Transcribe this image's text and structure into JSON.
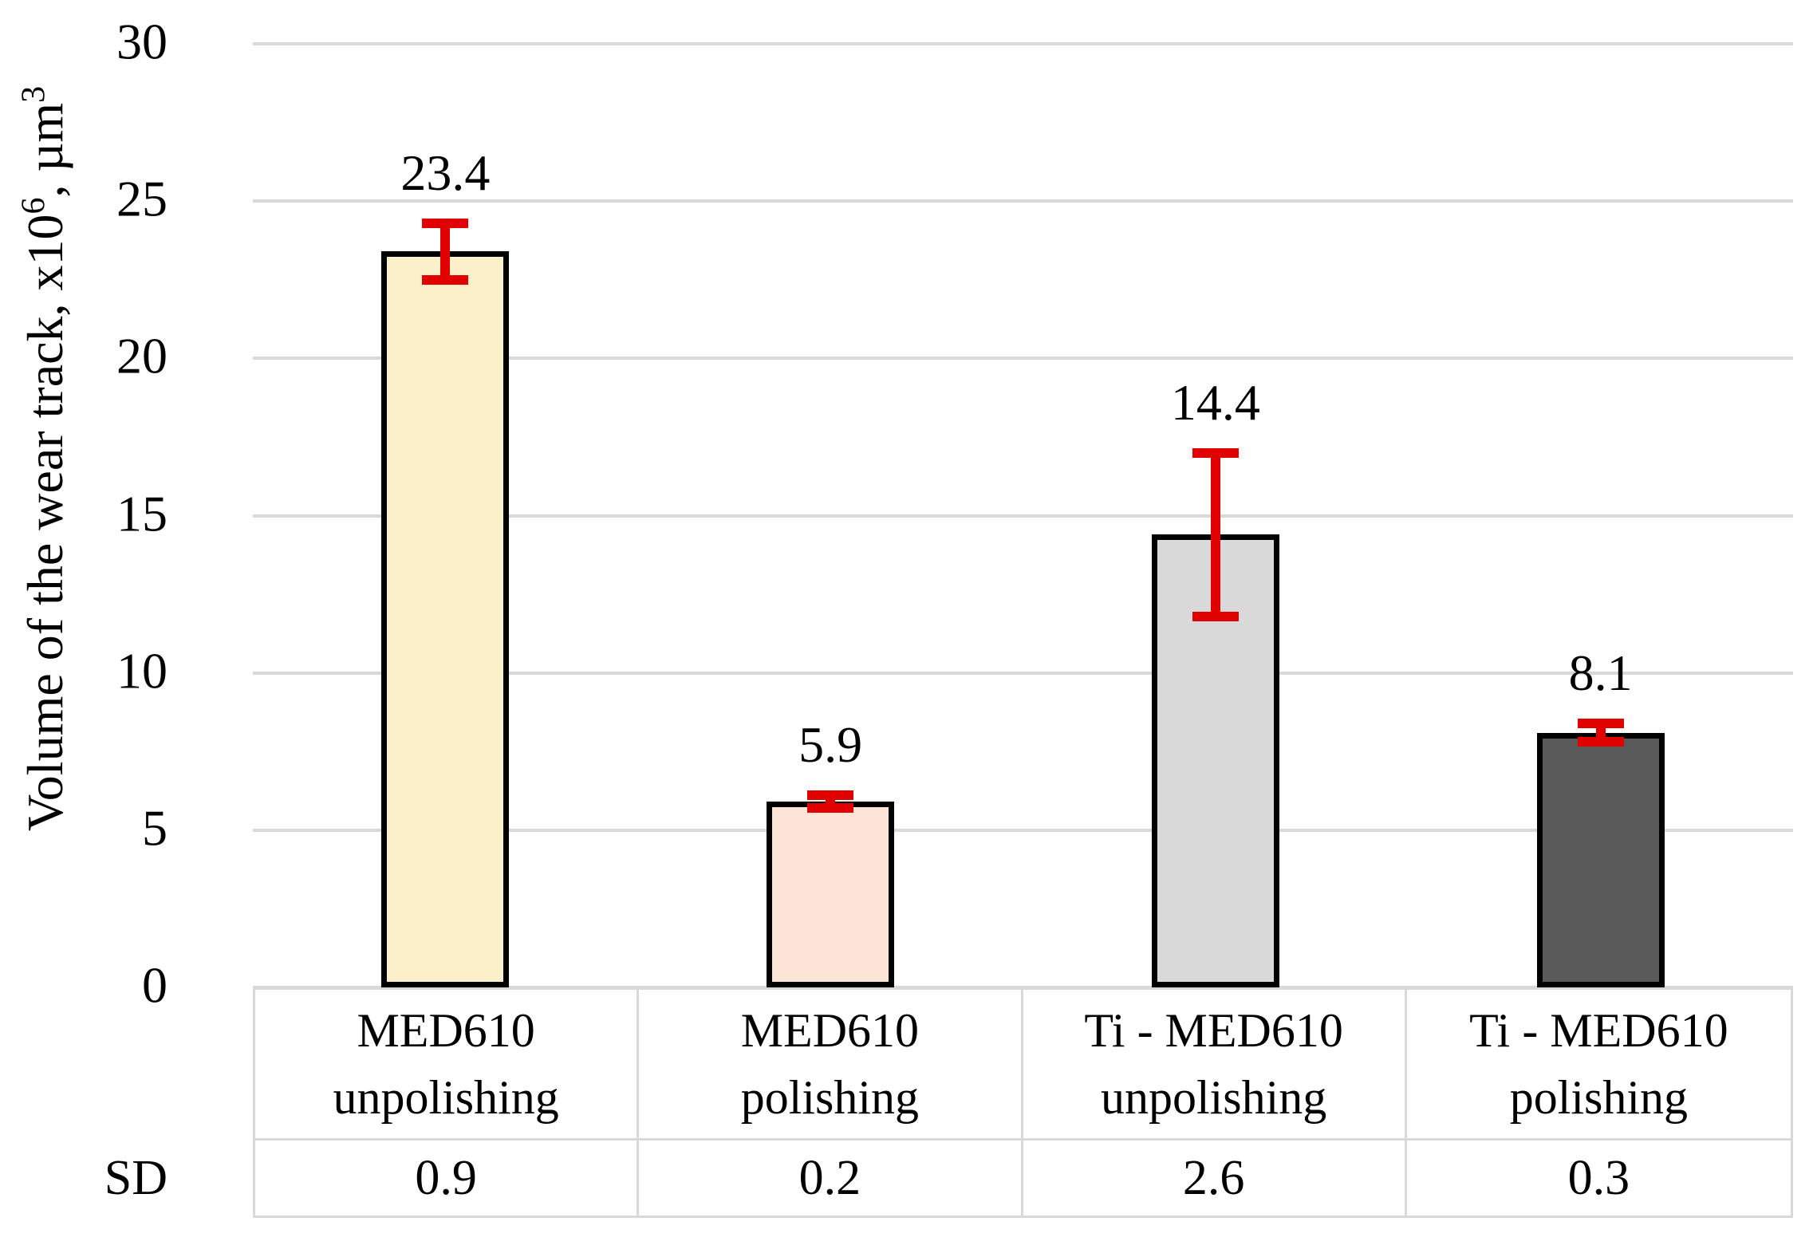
{
  "chart_data": {
    "type": "bar",
    "title": "",
    "ylabel_text": "Volume of the wear track, x10^6, µm^3",
    "ylabel_parts": {
      "pre": "Volume of the wear track, x10",
      "sup1": "6",
      "mid": ", µm",
      "sup2": "3"
    },
    "xlabel": "",
    "ylim": [
      0,
      30
    ],
    "yticks": [
      30,
      25,
      20,
      15,
      10,
      5,
      0
    ],
    "grid": "horizontal",
    "legend_position": "none",
    "categories": [
      "MED610 unpolishing",
      "MED610 polishing",
      "Ti - MED610 unpolishing",
      "Ti - MED610 polishing"
    ],
    "bars": [
      {
        "label_line1": "MED610",
        "label_line2": "unpolishing",
        "value": 23.4,
        "value_label": "23.4",
        "sd": 0.9,
        "sd_label": "0.9",
        "fill": "#FCF0CB"
      },
      {
        "label_line1": "MED610",
        "label_line2": "polishing",
        "value": 5.9,
        "value_label": "5.9",
        "sd": 0.2,
        "sd_label": "0.2",
        "fill": "#FCE5D6"
      },
      {
        "label_line1": "Ti - MED610",
        "label_line2": "unpolishing",
        "value": 14.4,
        "value_label": "14.4",
        "sd": 2.6,
        "sd_label": "2.6",
        "fill": "#D9D9D9"
      },
      {
        "label_line1": "Ti - MED610",
        "label_line2": "polishing",
        "value": 8.1,
        "value_label": "8.1",
        "sd": 0.3,
        "sd_label": "0.3",
        "fill": "#595959"
      }
    ],
    "sd_row_label": "SD",
    "colors": {
      "error_bar": "#E00000",
      "gridline": "#D9D9D9",
      "table_border": "#D9D9D9",
      "bar_border": "#000000",
      "text": "#000000",
      "background": "#FFFFFF"
    }
  }
}
